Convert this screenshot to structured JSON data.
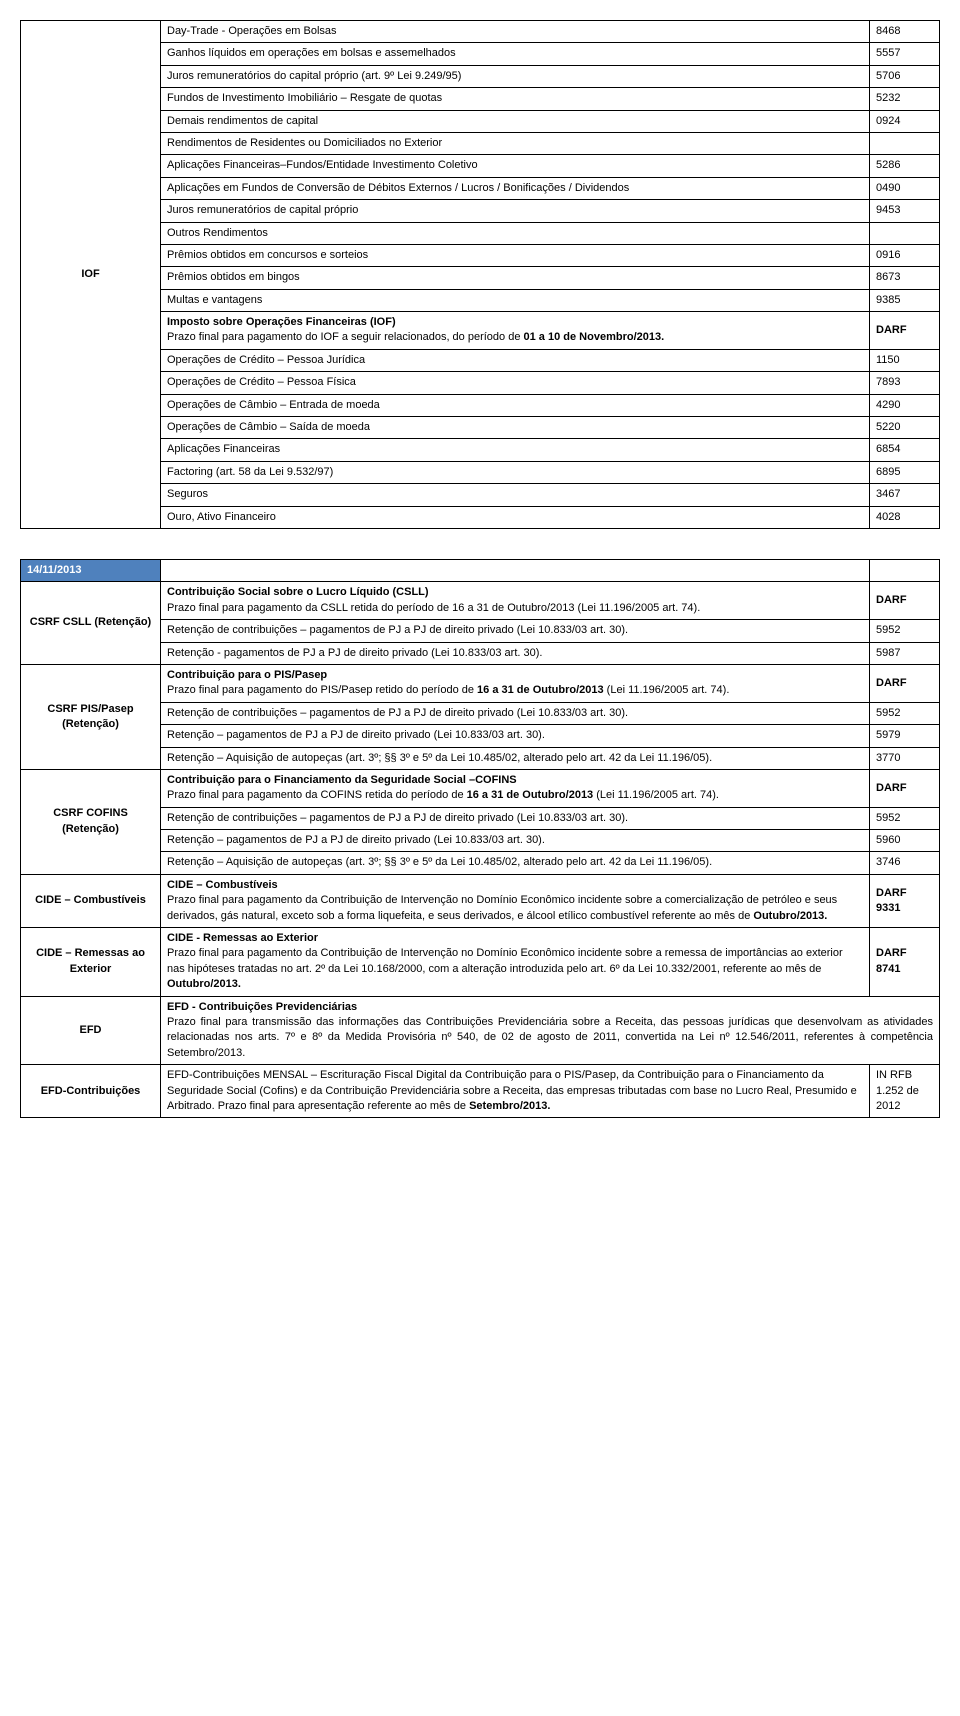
{
  "table1": {
    "label_col_width": 140,
    "val_col_width": 70,
    "colors": {
      "border": "#000000",
      "text": "#000000",
      "bg": "#ffffff"
    },
    "iof_label": "IOF",
    "upper_rows": [
      {
        "text": "Day-Trade - Operações em Bolsas",
        "val": "8468"
      },
      {
        "text": "Ganhos líquidos em operações em bolsas e assemelhados",
        "val": "5557"
      },
      {
        "text": "Juros remuneratórios do capital próprio (art. 9º Lei 9.249/95)",
        "val": "5706"
      },
      {
        "text": "Fundos de Investimento Imobiliário – Resgate de quotas",
        "val": "5232"
      },
      {
        "text": "Demais rendimentos de capital",
        "val": "0924"
      },
      {
        "text": "Rendimentos de Residentes ou Domiciliados no Exterior",
        "val": ""
      },
      {
        "text": "Aplicações Financeiras–Fundos/Entidade Investimento Coletivo",
        "val": "5286"
      },
      {
        "text": "Aplicações em Fundos de Conversão de Débitos Externos / Lucros / Bonificações / Dividendos",
        "val": "0490"
      },
      {
        "text": "Juros remuneratórios de capital próprio",
        "val": "9453"
      },
      {
        "text": "Outros Rendimentos",
        "val": ""
      },
      {
        "text": "Prêmios obtidos em concursos e sorteios",
        "val": "0916"
      },
      {
        "text": "Prêmios obtidos em bingos",
        "val": "8673"
      },
      {
        "text": "Multas e vantagens",
        "val": "9385"
      }
    ],
    "iof_intro": {
      "title": "Imposto sobre Operações Financeiras (IOF)",
      "body": "Prazo final para pagamento do IOF a seguir relacionados, do período de ",
      "bold_tail": "01 a 10 de Novembro/2013.",
      "val": "DARF"
    },
    "iof_rows": [
      {
        "text": "Operações de Crédito – Pessoa Jurídica",
        "val": "1150"
      },
      {
        "text": "Operações de Crédito – Pessoa Física",
        "val": "7893"
      },
      {
        "text": "Operações de Câmbio – Entrada de moeda",
        "val": "4290"
      },
      {
        "text": "Operações de Câmbio – Saída de moeda",
        "val": "5220"
      },
      {
        "text": "Aplicações Financeiras",
        "val": "6854"
      },
      {
        "text": "Factoring (art. 58 da Lei 9.532/97)",
        "val": "6895"
      },
      {
        "text": "Seguros",
        "val": "3467"
      },
      {
        "text": "Ouro, Ativo Financeiro",
        "val": "4028"
      }
    ]
  },
  "table2": {
    "date_header": "14/11/2013",
    "date_bg": "#4f81bd",
    "date_fg": "#ffffff",
    "sections": [
      {
        "label": "CSRF CSLL (Retenção)",
        "rows": [
          {
            "title": "Contribuição Social sobre o Lucro Líquido (CSLL)",
            "body": "Prazo final para pagamento da CSLL retida do período de 16 a 31 de Outubro/2013 (Lei 11.196/2005 art. 74).",
            "val": "DARF",
            "val_bold": true
          },
          {
            "body": "Retenção de contribuições – pagamentos de PJ a PJ de direito privado (Lei 10.833/03 art. 30).",
            "val": "5952"
          },
          {
            "body": "Retenção - pagamentos de PJ a PJ de direito privado (Lei 10.833/03 art. 30).",
            "val": "5987"
          }
        ]
      },
      {
        "label": "CSRF PIS/Pasep (Retenção)",
        "rows": [
          {
            "title": "Contribuição para o PIS/Pasep",
            "body_pre": "Prazo final para pagamento do PIS/Pasep retido do período de ",
            "body_bold": "16 a 31 de Outubro/2013",
            "body_post": " (Lei 11.196/2005 art. 74).",
            "val": "DARF",
            "val_bold": true
          },
          {
            "body": "Retenção de contribuições – pagamentos de PJ a PJ de direito privado (Lei 10.833/03 art. 30).",
            "val": "5952"
          },
          {
            "body": "Retenção – pagamentos de PJ a PJ de direito privado (Lei 10.833/03 art. 30).",
            "val": "5979"
          },
          {
            "body": "Retenção – Aquisição de autopeças (art. 3º; §§ 3º e 5º da Lei 10.485/02, alterado pelo art. 42 da Lei 11.196/05).",
            "val": "3770"
          }
        ]
      },
      {
        "label": "CSRF COFINS (Retenção)",
        "rows": [
          {
            "title": "Contribuição para o Financiamento da Seguridade Social –COFINS",
            "body_pre": "Prazo final para pagamento da COFINS retida do período de ",
            "body_bold": "16 a 31 de Outubro/2013",
            "body_post": " (Lei 11.196/2005 art. 74).",
            "val": "DARF",
            "val_bold": true
          },
          {
            "body": "Retenção de contribuições – pagamentos de PJ a PJ de direito privado (Lei 10.833/03 art. 30).",
            "val": "5952"
          },
          {
            "body": "Retenção – pagamentos de PJ a PJ de direito privado (Lei 10.833/03 art. 30).",
            "val": "5960"
          },
          {
            "body": "Retenção – Aquisição de autopeças (art. 3º; §§ 3º e 5º da Lei 10.485/02, alterado pelo art. 42 da Lei 11.196/05).",
            "val": "3746"
          }
        ]
      },
      {
        "label": "CIDE – Combustíveis",
        "rows": [
          {
            "title": "CIDE – Combustíveis",
            "body_pre": "Prazo final para pagamento da Contribuição de Intervenção no Domínio Econômico incidente sobre a comercialização de petróleo e seus derivados, gás natural, exceto sob a forma liquefeita, e seus derivados, e álcool etílico combustível referente ao mês de ",
            "body_bold": "Outubro/2013.",
            "val": "DARF 9331",
            "val_bold": true,
            "val_multiline": true
          }
        ]
      },
      {
        "label": "CIDE – Remessas ao Exterior",
        "rows": [
          {
            "title": "CIDE - Remessas ao Exterior",
            "body_pre": "Prazo final para pagamento da Contribuição de Intervenção no Domínio Econômico incidente sobre a remessa de importâncias ao exterior nas hipóteses tratadas no art. 2º da Lei 10.168/2000, com a alteração introduzida pelo art. 6º da Lei 10.332/2001, referente ao mês de ",
            "body_bold": "Outubro/2013.",
            "val": "DARF 8741",
            "val_bold": true,
            "val_multiline": true
          }
        ]
      },
      {
        "label": "EFD",
        "full_width": true,
        "rows": [
          {
            "title": "EFD - Contribuições Previdenciárias",
            "body": "Prazo final para transmissão das informações das Contribuições Previdenciária sobre a Receita, das pessoas jurídicas que desenvolvam as atividades relacionadas nos arts. 7º e 8º da Medida Provisória nº 540, de 02 de agosto de 2011, convertida na Lei nº 12.546/2011, referentes à competência Setembro/2013.",
            "justify": true
          }
        ]
      },
      {
        "label": "EFD-Contribuições",
        "rows": [
          {
            "body_pre": "EFD-Contribuições MENSAL – Escrituração Fiscal Digital da Contribuição para o PIS/Pasep, da Contribuição para o Financiamento da Seguridade Social (Cofins) e da Contribuição Previdenciária sobre a Receita, das empresas tributadas com base no Lucro Real, Presumido e Arbitrado. Prazo final para apresentação referente ao mês de ",
            "body_bold": "Setembro/2013.",
            "val": "IN RFB 1.252 de 2012"
          }
        ]
      }
    ]
  }
}
